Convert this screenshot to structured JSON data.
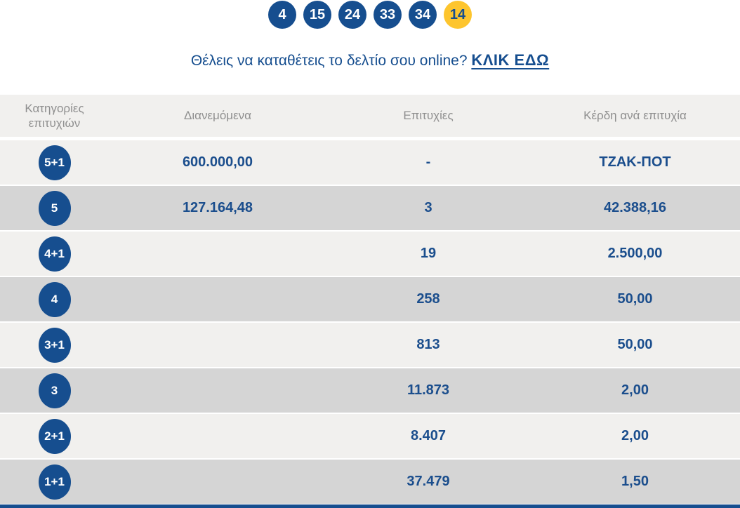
{
  "draw": {
    "numbers": [
      "4",
      "15",
      "24",
      "33",
      "34"
    ],
    "joker": "14"
  },
  "promo": {
    "text": "Θέλεις να καταθέτεις το δελτίο σου online? ",
    "link_label": "ΚΛΙΚ ΕΔΩ"
  },
  "table": {
    "headers": [
      "Κατηγορίες επιτυχιών",
      "Διανεμόμενα",
      "Επιτυχίες",
      "Κέρδη ανά επιτυχία"
    ],
    "rows": [
      {
        "category": "5+1",
        "distributed": "600.000,00",
        "winners": "-",
        "winnings": "ΤΖΑΚ-ΠΟΤ"
      },
      {
        "category": "5",
        "distributed": "127.164,48",
        "winners": "3",
        "winnings": "42.388,16"
      },
      {
        "category": "4+1",
        "distributed": "",
        "winners": "19",
        "winnings": "2.500,00"
      },
      {
        "category": "4",
        "distributed": "",
        "winners": "258",
        "winnings": "50,00"
      },
      {
        "category": "3+1",
        "distributed": "",
        "winners": "813",
        "winnings": "50,00"
      },
      {
        "category": "3",
        "distributed": "",
        "winners": "11.873",
        "winnings": "2,00"
      },
      {
        "category": "2+1",
        "distributed": "",
        "winners": "8.407",
        "winnings": "2,00"
      },
      {
        "category": "1+1",
        "distributed": "",
        "winners": "37.479",
        "winnings": "1,50"
      }
    ]
  },
  "colors": {
    "brand_blue": "#164e8f",
    "joker_yellow": "#fdc52e",
    "row_light": "#f1f0ee",
    "row_dark": "#d5d5d5",
    "header_text": "#8f8f8f"
  }
}
